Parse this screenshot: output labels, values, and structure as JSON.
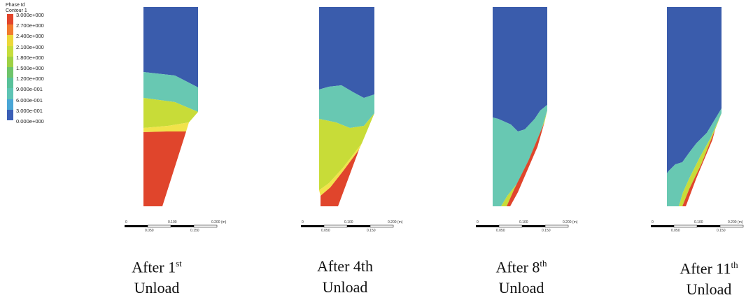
{
  "legend": {
    "title_line1": "Phase Id",
    "title_line2": "Contour 1",
    "entries": [
      {
        "label": "3.000e+000",
        "color": "#e2452c"
      },
      {
        "label": "2.700e+000",
        "color": "#f27b2e"
      },
      {
        "label": "2.400e+000",
        "color": "#ecd83a"
      },
      {
        "label": "2.100e+000",
        "color": "#c6dd3c"
      },
      {
        "label": "1.800e+000",
        "color": "#9ed144"
      },
      {
        "label": "1.500e+000",
        "color": "#6ec46a"
      },
      {
        "label": "1.200e+000",
        "color": "#58c19a"
      },
      {
        "label": "9.000e-001",
        "color": "#5ec4b4"
      },
      {
        "label": "6.000e-001",
        "color": "#4aa6d6"
      },
      {
        "label": "3.000e-001",
        "color": "#3a5eb6"
      }
    ],
    "last_label": "0.000e+000"
  },
  "phase_colors": {
    "blue": "#3a5cac",
    "teal": "#68c8b2",
    "lime": "#c8dc38",
    "red": "#e0452c",
    "yellow": "#f1e34a"
  },
  "scale_bar": {
    "labels_top": [
      "0",
      "0.100",
      "0.200 (m)"
    ],
    "labels_bottom": [
      "0.050",
      "0.150"
    ]
  },
  "panels": [
    {
      "caption_pre": "After 1",
      "caption_sup": "st",
      "caption_line2": "Unload"
    },
    {
      "caption_pre": "After 4th",
      "caption_sup": "",
      "caption_line2": "Unload"
    },
    {
      "caption_pre": "After 8",
      "caption_sup": "th",
      "caption_line2": "Unload"
    },
    {
      "caption_pre": "After 11",
      "caption_sup": "th",
      "caption_line2": "Unload"
    }
  ]
}
